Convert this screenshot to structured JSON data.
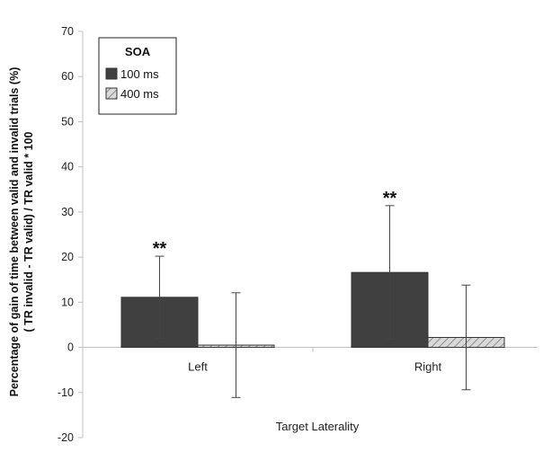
{
  "chart_data": {
    "type": "bar",
    "ylabel_line1": "Percentage of gain of time between valid and invalid trials (%)",
    "ylabel_line2": "( TR invalid - TR valid) / TR valid * 100",
    "xlabel": "Target Laterality",
    "ylim": [
      -20,
      70
    ],
    "yticks": [
      -20,
      -10,
      0,
      10,
      20,
      30,
      40,
      50,
      60,
      70
    ],
    "categories": [
      "Left",
      "Right"
    ],
    "legend": {
      "title": "SOA",
      "placement": "top-left"
    },
    "series": [
      {
        "name": "100 ms",
        "color": "#404040",
        "fill": "solid",
        "values": [
          11.1,
          16.6
        ],
        "error": [
          9.1,
          14.8
        ],
        "significance": [
          "**",
          "**"
        ]
      },
      {
        "name": "400 ms",
        "color": "#c8c8c8",
        "fill": "hatched",
        "values": [
          0.5,
          2.2
        ],
        "error": [
          11.6,
          11.6
        ],
        "significance": [
          "",
          ""
        ]
      }
    ],
    "grid": false
  }
}
